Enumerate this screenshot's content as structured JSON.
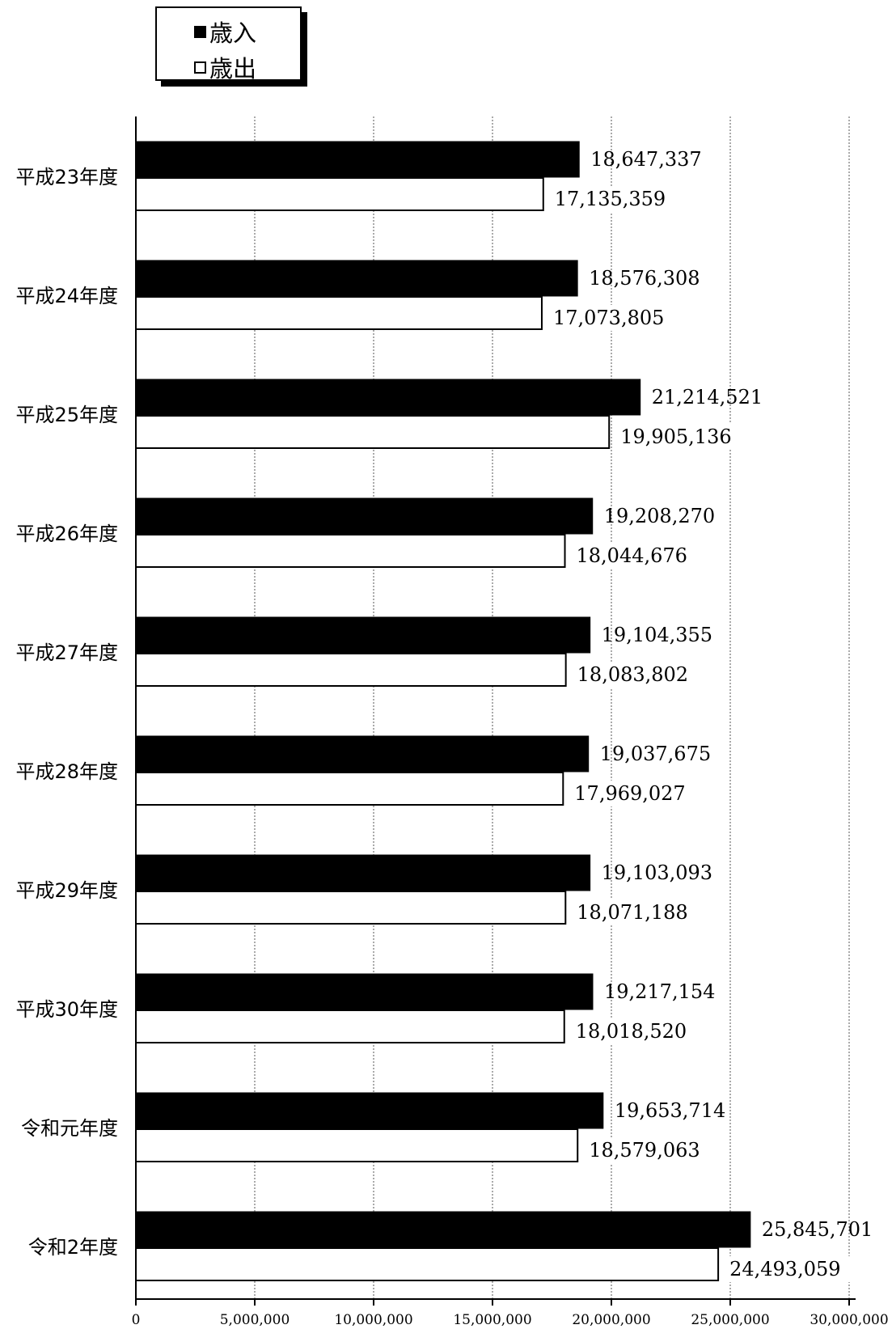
{
  "chart_data": {
    "type": "bar",
    "orientation": "horizontal",
    "title": "",
    "xlabel": "",
    "ylabel": "",
    "categories": [
      "平成23年度",
      "平成24年度",
      "平成25年度",
      "平成26年度",
      "平成27年度",
      "平成28年度",
      "平成29年度",
      "平成30年度",
      "令和元年度",
      "令和2年度"
    ],
    "series": [
      {
        "name": "歳入",
        "color": "#000000",
        "values": [
          18647337,
          18576308,
          21214521,
          19208270,
          19104355,
          19037675,
          19103093,
          19217154,
          19653714,
          25845701
        ],
        "labels": [
          "18,647,337",
          "18,576,308",
          "21,214,521",
          "19,208,270",
          "19,104,355",
          "19,037,675",
          "19,103,093",
          "19,217,154",
          "19,653,714",
          "25,845,701"
        ]
      },
      {
        "name": "歳出",
        "color": "#ffffff",
        "values": [
          17135359,
          17073805,
          19905136,
          18044676,
          18083802,
          17969027,
          18071188,
          18018520,
          18579063,
          24493059
        ],
        "labels": [
          "17,135,359",
          "17,073,805",
          "19,905,136",
          "18,044,676",
          "18,083,802",
          "17,969,027",
          "18,071,188",
          "18,018,520",
          "18,579,063",
          "24,493,059"
        ]
      }
    ],
    "xlim": [
      0,
      30000000
    ],
    "xticks": [
      0,
      5000000,
      10000000,
      15000000,
      20000000,
      25000000,
      30000000
    ],
    "xtick_labels": [
      "0",
      "5,000,000",
      "10,000,000",
      "15,000,000",
      "20,000,000",
      "25,000,000",
      "30,000,000"
    ],
    "grid": "vertical-dotted",
    "legend_position": "top-left"
  },
  "legend": {
    "item1_label": "歳入",
    "item2_label": "歳出"
  }
}
